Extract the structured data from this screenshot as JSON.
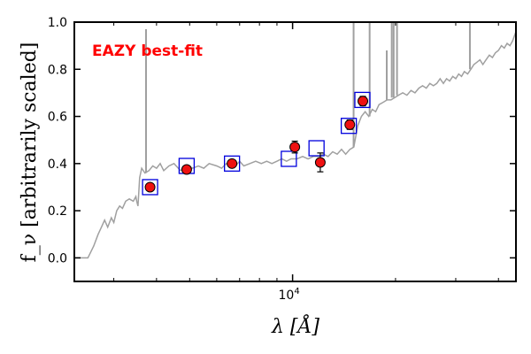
{
  "chart_data": {
    "type": "scatter",
    "title": "",
    "annotation": "EAZY best-fit",
    "xlabel": "λ [Å]",
    "ylabel": "f_ν [arbitrarily scaled]",
    "xscale": "log",
    "xlim": [
      2300,
      45000
    ],
    "ylim": [
      -0.1,
      1.0
    ],
    "y_ticks": [
      0.0,
      0.2,
      0.4,
      0.6,
      0.8,
      1.0
    ],
    "y_tick_labels": [
      "0.0",
      "0.2",
      "0.4",
      "0.6",
      "0.8",
      "1.0"
    ],
    "x_ticks": [
      10000
    ],
    "x_tick_labels": [
      "10^4"
    ],
    "x_tick_base": "10",
    "x_tick_exp": "4",
    "grid": false,
    "colors": {
      "model": "#a0a0a0",
      "model_photometry": "#0000dd",
      "observed_fill": "#ee1111",
      "observed_edge": "#000000",
      "annotation": "#ff0000"
    },
    "series": [
      {
        "kind": "model-spectrum",
        "x": [
          2300,
          2520,
          2620,
          2700,
          2760,
          2820,
          2880,
          2950,
          3000,
          3060,
          3120,
          3180,
          3250,
          3330,
          3420,
          3480,
          3500,
          3530,
          3570,
          3620,
          3700,
          3800,
          3900,
          4000,
          4100,
          4200,
          4350,
          4500,
          4700,
          4900,
          5100,
          5300,
          5500,
          5700,
          6000,
          6200,
          6400,
          6600,
          6800,
          7000,
          7200,
          7500,
          7800,
          8100,
          8400,
          8700,
          9000,
          9300,
          9600,
          9900,
          10300,
          10700,
          11100,
          11500,
          11900,
          12300,
          12700,
          13100,
          13500,
          13900,
          14300,
          14700,
          15100,
          15500,
          15900,
          16300,
          16700,
          17100,
          17500,
          17900,
          18400,
          18900,
          19400,
          19900,
          20400,
          21000,
          21600,
          22200,
          22800,
          23400,
          24000,
          24600,
          25200,
          25800,
          26400,
          27000,
          27600,
          28200,
          28800,
          29400,
          30000,
          30600,
          31200,
          31800,
          32500,
          33200,
          33900,
          34600,
          35300,
          36000,
          36800,
          37600,
          38400,
          39200,
          40000,
          40800,
          41600,
          42400,
          43200,
          44000,
          45000
        ],
        "y": [
          0.0,
          0.0,
          0.05,
          0.1,
          0.13,
          0.16,
          0.13,
          0.17,
          0.15,
          0.2,
          0.22,
          0.21,
          0.24,
          0.25,
          0.24,
          0.26,
          0.24,
          0.22,
          0.34,
          0.38,
          0.36,
          0.37,
          0.39,
          0.38,
          0.4,
          0.37,
          0.39,
          0.4,
          0.37,
          0.39,
          0.38,
          0.39,
          0.38,
          0.4,
          0.39,
          0.38,
          0.4,
          0.39,
          0.39,
          0.41,
          0.39,
          0.4,
          0.41,
          0.4,
          0.41,
          0.4,
          0.41,
          0.42,
          0.41,
          0.42,
          0.42,
          0.43,
          0.42,
          0.43,
          0.43,
          0.44,
          0.43,
          0.45,
          0.44,
          0.46,
          0.44,
          0.46,
          0.47,
          0.56,
          0.6,
          0.62,
          0.6,
          0.63,
          0.62,
          0.65,
          0.66,
          0.67,
          0.67,
          0.68,
          0.69,
          0.7,
          0.69,
          0.71,
          0.7,
          0.72,
          0.73,
          0.72,
          0.74,
          0.73,
          0.74,
          0.76,
          0.74,
          0.76,
          0.75,
          0.77,
          0.76,
          0.78,
          0.77,
          0.79,
          0.78,
          0.8,
          0.82,
          0.83,
          0.84,
          0.82,
          0.84,
          0.86,
          0.85,
          0.87,
          0.88,
          0.9,
          0.89,
          0.91,
          0.9,
          0.92,
          0.96
        ]
      }
    ],
    "emission_lines": [
      {
        "x": 3727,
        "base": 0.36,
        "peak": 0.97
      },
      {
        "x": 15080,
        "base": 0.47,
        "peak": 1.05
      },
      {
        "x": 16800,
        "base": 0.6,
        "peak": 1.05
      },
      {
        "x": 18850,
        "base": 0.67,
        "peak": 0.88
      },
      {
        "x": 19500,
        "base": 0.68,
        "peak": 1.05
      },
      {
        "x": 19750,
        "base": 0.68,
        "peak": 1.05
      },
      {
        "x": 20200,
        "base": 0.69,
        "peak": 1.05
      },
      {
        "x": 33000,
        "base": 0.8,
        "peak": 1.05
      }
    ],
    "model_photometry": {
      "x": [
        3830,
        4900,
        6650,
        9750,
        11750,
        14600,
        16000
      ],
      "y": [
        0.3,
        0.39,
        0.4,
        0.42,
        0.465,
        0.56,
        0.67
      ]
    },
    "observed_photometry": {
      "x": [
        3830,
        4900,
        6650,
        10150,
        12050,
        14700,
        16050
      ],
      "y": [
        0.3,
        0.375,
        0.4,
        0.47,
        0.405,
        0.565,
        0.665
      ],
      "yerr": [
        0.01,
        0.01,
        0.01,
        0.025,
        0.04,
        0.02,
        0.02
      ]
    }
  }
}
